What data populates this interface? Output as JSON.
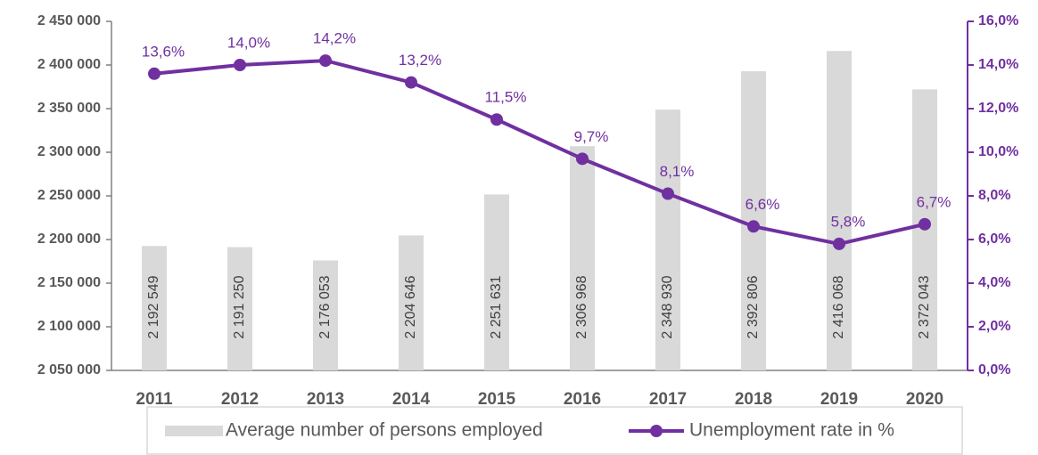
{
  "chart_data": {
    "type": "combo",
    "categories": [
      "2011",
      "2012",
      "2013",
      "2014",
      "2015",
      "2016",
      "2017",
      "2018",
      "2019",
      "2020"
    ],
    "series": [
      {
        "name": "Average number of persons employed",
        "type": "bar",
        "color": "#d9d9d9",
        "values": [
          2192549,
          2191250,
          2176053,
          2204646,
          2251631,
          2306968,
          2348930,
          2392806,
          2416068,
          2372043
        ],
        "value_labels": [
          "2 192 549",
          "2 191 250",
          "2 176 053",
          "2 204 646",
          "2 251 631",
          "2 306 968",
          "2 348 930",
          "2 392 806",
          "2 416 068",
          "2 372 043"
        ]
      },
      {
        "name": "Unemployment rate in %",
        "type": "line",
        "axis": "y2",
        "color": "#7030a0",
        "values": [
          13.6,
          14.0,
          14.2,
          13.2,
          11.5,
          9.7,
          8.1,
          6.6,
          5.8,
          6.7
        ],
        "value_labels": [
          "13,6%",
          "14,0%",
          "14,2%",
          "13,2%",
          "11,5%",
          "9,7%",
          "8,1%",
          "6,6%",
          "5,8%",
          "6,7%"
        ]
      }
    ],
    "ylim": [
      2050000,
      2450000
    ],
    "yticks": [
      {
        "value": 2050000,
        "label": "2 050 000"
      },
      {
        "value": 2100000,
        "label": "2 100 000"
      },
      {
        "value": 2150000,
        "label": "2 150 000"
      },
      {
        "value": 2200000,
        "label": "2 200 000"
      },
      {
        "value": 2250000,
        "label": "2 250 000"
      },
      {
        "value": 2300000,
        "label": "2 300 000"
      },
      {
        "value": 2350000,
        "label": "2 350 000"
      },
      {
        "value": 2400000,
        "label": "2 400 000"
      },
      {
        "value": 2450000,
        "label": "2 450 000"
      }
    ],
    "y2lim": [
      0,
      16
    ],
    "y2ticks": [
      {
        "value": 0,
        "label": "0,0%"
      },
      {
        "value": 2,
        "label": "2,0%"
      },
      {
        "value": 4,
        "label": "4,0%"
      },
      {
        "value": 6,
        "label": "6,0%"
      },
      {
        "value": 8,
        "label": "8,0%"
      },
      {
        "value": 10,
        "label": "10,0%"
      },
      {
        "value": 12,
        "label": "12,0%"
      },
      {
        "value": 14,
        "label": "14,0%"
      },
      {
        "value": 16,
        "label": "16,0%"
      }
    ],
    "grid": false,
    "legend": "bottom"
  }
}
